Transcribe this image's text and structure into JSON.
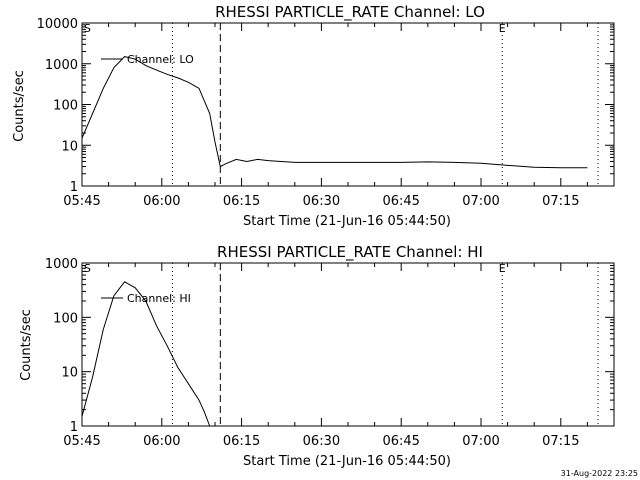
{
  "chart_data": [
    {
      "type": "line",
      "title": "RHESSI PARTICLE_RATE Channel: LO",
      "xlabel": "Start Time (21-Jun-16 05:44:50)",
      "ylabel": "Counts/sec",
      "y_scale": "log",
      "ylim": [
        1,
        10000
      ],
      "xlim": [
        "05:45",
        "07:25"
      ],
      "x_ticks": [
        "05:45",
        "06:00",
        "06:15",
        "06:30",
        "06:45",
        "07:00",
        "07:15"
      ],
      "y_ticks": [
        "1",
        "10",
        "100",
        "1000",
        "10000"
      ],
      "markers": [
        {
          "label": "S",
          "time": "05:46",
          "style": "none"
        },
        {
          "label": "",
          "time": "06:02",
          "style": "dotted"
        },
        {
          "label": "",
          "time": "06:11",
          "style": "dashed"
        },
        {
          "label": "E",
          "time": "07:04",
          "style": "dotted"
        },
        {
          "label": "",
          "time": "07:22",
          "style": "dotted"
        }
      ],
      "legend": "top-left",
      "series": [
        {
          "name": "Channel: LO",
          "x": [
            "05:45",
            "05:47",
            "05:49",
            "05:51",
            "05:53",
            "05:55",
            "05:57",
            "05:59",
            "06:01",
            "06:03",
            "06:05",
            "06:07",
            "06:09",
            "06:10",
            "06:11",
            "06:12",
            "06:14",
            "06:16",
            "06:18",
            "06:20",
            "06:25",
            "06:30",
            "06:35",
            "06:40",
            "06:45",
            "06:50",
            "06:55",
            "07:00",
            "07:05",
            "07:10",
            "07:15",
            "07:20"
          ],
          "values": [
            15,
            60,
            250,
            800,
            1500,
            1300,
            900,
            700,
            550,
            450,
            350,
            250,
            60,
            12,
            3,
            3.5,
            4.5,
            4,
            4.5,
            4.2,
            3.8,
            3.8,
            3.8,
            3.8,
            3.8,
            3.9,
            3.8,
            3.6,
            3.2,
            2.9,
            2.8,
            2.8
          ]
        }
      ]
    },
    {
      "type": "line",
      "title": "RHESSI PARTICLE_RATE Channel: HI",
      "xlabel": "Start Time (21-Jun-16 05:44:50)",
      "ylabel": "Counts/sec",
      "y_scale": "log",
      "ylim": [
        1,
        1000
      ],
      "xlim": [
        "05:45",
        "07:25"
      ],
      "x_ticks": [
        "05:45",
        "06:00",
        "06:15",
        "06:30",
        "06:45",
        "07:00",
        "07:15"
      ],
      "y_ticks": [
        "1",
        "10",
        "100",
        "1000"
      ],
      "markers": [
        {
          "label": "S",
          "time": "05:46",
          "style": "none"
        },
        {
          "label": "",
          "time": "06:02",
          "style": "dotted"
        },
        {
          "label": "",
          "time": "06:11",
          "style": "dashed"
        },
        {
          "label": "E",
          "time": "07:04",
          "style": "dotted"
        },
        {
          "label": "",
          "time": "07:22",
          "style": "dotted"
        }
      ],
      "legend": "top-left",
      "series": [
        {
          "name": "Channel: HI",
          "x": [
            "05:45",
            "05:47",
            "05:49",
            "05:51",
            "05:53",
            "05:55",
            "05:57",
            "05:59",
            "06:01",
            "06:03",
            "06:05",
            "06:07",
            "06:08",
            "06:09"
          ],
          "values": [
            1.5,
            8,
            60,
            250,
            450,
            350,
            200,
            70,
            30,
            12,
            6,
            3,
            1.8,
            1
          ]
        }
      ]
    }
  ],
  "footer": {
    "timestamp": "31-Aug-2022 23:25"
  }
}
